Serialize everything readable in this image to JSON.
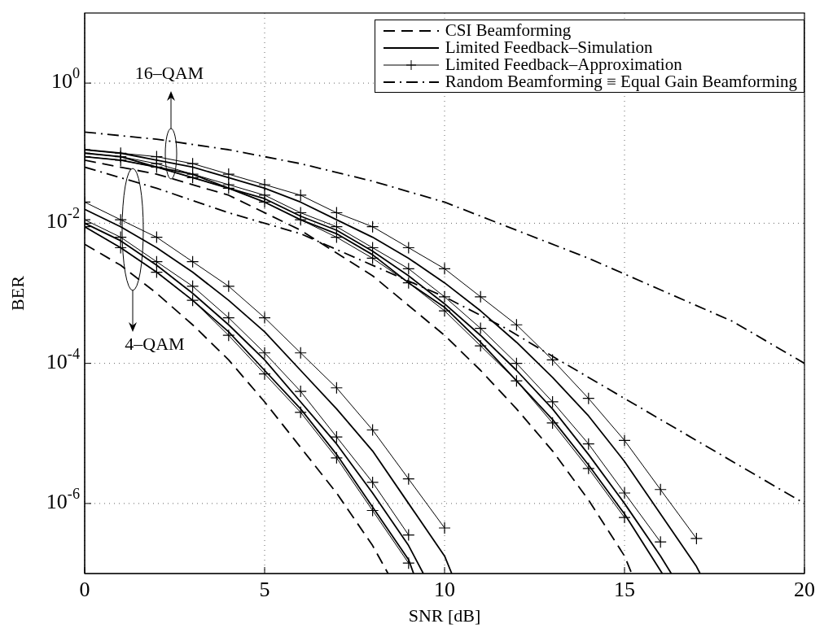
{
  "chart_data": {
    "type": "line",
    "xlabel": "SNR [dB]",
    "ylabel": "BER",
    "log": "y",
    "grid": true,
    "legend": "top right",
    "xlim": [
      0,
      20
    ],
    "xticks": [
      0,
      5,
      10,
      15,
      20
    ],
    "ylim": [
      1e-07,
      10
    ],
    "yticks": [
      {
        "value": 1e-06,
        "label": "10$^{-6}$"
      },
      {
        "value": 0.0001,
        "label": "10$^{-4}$"
      },
      {
        "value": 0.01,
        "label": "10$^{-2}$"
      },
      {
        "value": 1,
        "label": "10$^{0}$"
      }
    ],
    "annotations": [
      "16–QAM",
      "4–QAM"
    ],
    "series": [
      {
        "name": "CSI Beamforming",
        "color": "#000000",
        "line_style": "dashed",
        "marker": "none",
        "x": [
          0,
          1,
          2,
          3,
          4,
          5,
          6,
          7,
          8,
          8.43
        ],
        "values": [
          0.00501,
          0.00251,
          0.001,
          0.000355,
          0.000112,
          2.82e-05,
          6.31e-06,
          1.41e-06,
          2.51e-07,
          1e-07
        ]
      },
      {
        "name": "Limited Feedback–Simulation",
        "color": "#000000",
        "line_style": "solid",
        "marker": "none",
        "x": [
          0,
          1,
          2,
          3,
          4,
          5,
          6,
          7,
          8,
          9,
          10,
          10.2
        ],
        "values": [
          0.0158,
          0.00891,
          0.00447,
          0.002,
          0.000794,
          0.000282,
          7.94e-05,
          2.24e-05,
          5.62e-06,
          1e-06,
          1.78e-07,
          1e-07
        ]
      },
      {
        "name": "Limited Feedback–Approximation",
        "color": "#000000",
        "line_style": "solid",
        "marker": "cross",
        "x": [
          0,
          1,
          2,
          3,
          4,
          5,
          6,
          7,
          8,
          9,
          10
        ],
        "values": [
          0.02,
          0.0112,
          0.00631,
          0.00282,
          0.00126,
          0.000447,
          0.000141,
          4.47e-05,
          1.12e-05,
          2.24e-06,
          4.47e-07
        ]
      },
      {
        "name": "Random Beamforming ≡ Equal Gain Beamforming",
        "color": "#000000",
        "line_style": "dashdot",
        "marker": "none",
        "x": [
          0,
          2,
          4,
          6,
          8,
          10,
          12,
          14,
          16,
          18,
          20
        ],
        "values": [
          0.2,
          0.158,
          0.112,
          0.0708,
          0.0398,
          0.02,
          0.00794,
          0.00316,
          0.00112,
          0.000398,
          0.0001
        ]
      },
      {
        "color": "#000000",
        "line_style": "dashdot",
        "marker": "none",
        "x": [
          0,
          2,
          4,
          6,
          8,
          10,
          11.7,
          13,
          16,
          20
        ],
        "values": [
          0.0631,
          0.0316,
          0.0141,
          0.00708,
          0.00251,
          0.000891,
          0.000316,
          0.000126,
          1.58e-05,
          1e-06
        ]
      },
      {
        "color": "#000000",
        "line_style": "solid",
        "marker": "none",
        "x": [
          0,
          1,
          2,
          3,
          4,
          5,
          6,
          7,
          8,
          9,
          9.41
        ],
        "values": [
          0.01,
          0.00562,
          0.00251,
          0.001,
          0.000355,
          0.000112,
          2.82e-05,
          7.08e-06,
          1.41e-06,
          2.51e-07,
          1e-07
        ]
      },
      {
        "color": "#000000",
        "line_style": "solid",
        "marker": "none",
        "x": [
          0,
          1,
          2,
          3,
          4,
          5,
          6,
          7,
          8,
          9,
          9.14
        ],
        "values": [
          0.00891,
          0.00447,
          0.002,
          0.000794,
          0.000282,
          7.94e-05,
          2.24e-05,
          5.01e-06,
          8.91e-07,
          1.58e-07,
          1e-07
        ]
      },
      {
        "color": "#000000",
        "line_style": "solid",
        "marker": "cross",
        "x": [
          0,
          1,
          2,
          3,
          4,
          5,
          6,
          7,
          8,
          9
        ],
        "values": [
          0.0112,
          0.00631,
          0.00282,
          0.00126,
          0.000447,
          0.000141,
          3.98e-05,
          8.91e-06,
          2e-06,
          3.55e-07
        ]
      },
      {
        "color": "#000000",
        "line_style": "solid",
        "marker": "cross",
        "x": [
          0,
          1,
          2,
          3,
          4,
          5,
          6,
          7,
          8,
          9
        ],
        "values": [
          0.00891,
          0.00447,
          0.002,
          0.000794,
          0.000251,
          7.08e-05,
          2e-05,
          4.47e-06,
          7.94e-07,
          1.41e-07
        ]
      },
      {
        "color": "#000000",
        "line_style": "dashed",
        "marker": "none",
        "x": [
          0,
          2,
          4,
          6,
          8,
          10,
          11,
          12,
          13,
          14,
          15,
          15.2
        ],
        "values": [
          0.0794,
          0.0501,
          0.0251,
          0.00794,
          0.00178,
          0.000251,
          7.94e-05,
          2.24e-05,
          5.62e-06,
          1.12e-06,
          1.78e-07,
          1e-07
        ]
      },
      {
        "color": "#000000",
        "line_style": "solid",
        "marker": "cross",
        "x": [
          0,
          1,
          2,
          3,
          4,
          5,
          6,
          7,
          8,
          9,
          10,
          11,
          12,
          13,
          14,
          15
        ],
        "values": [
          0.0891,
          0.0794,
          0.0631,
          0.0447,
          0.0316,
          0.02,
          0.0112,
          0.00631,
          0.00316,
          0.00141,
          0.000562,
          0.000178,
          5.62e-05,
          1.41e-05,
          3.16e-06,
          6.31e-07
        ]
      },
      {
        "color": "#000000",
        "line_style": "solid",
        "marker": "none",
        "x": [
          0,
          1,
          2,
          3,
          4,
          5,
          6,
          7,
          8,
          9,
          10,
          11,
          12,
          13,
          14,
          15,
          16,
          17,
          17.1
        ],
        "values": [
          0.112,
          0.1,
          0.0794,
          0.0631,
          0.0447,
          0.0316,
          0.02,
          0.0112,
          0.00631,
          0.00316,
          0.00141,
          0.000562,
          0.0002,
          6.31e-05,
          1.78e-05,
          3.98e-06,
          7.08e-07,
          1.26e-07,
          1e-07
        ]
      },
      {
        "color": "#000000",
        "line_style": "solid",
        "marker": "none",
        "x": [
          0,
          1,
          2,
          3,
          4,
          5,
          6,
          7,
          8,
          9,
          10,
          11,
          12,
          13,
          14,
          15,
          16,
          16.3
        ],
        "values": [
          0.1,
          0.0891,
          0.0631,
          0.0501,
          0.0316,
          0.0224,
          0.0126,
          0.00794,
          0.00398,
          0.00178,
          0.000708,
          0.000251,
          7.94e-05,
          2.24e-05,
          5.01e-06,
          1e-06,
          1.78e-07,
          1e-07
        ]
      },
      {
        "color": "#000000",
        "line_style": "solid",
        "marker": "none",
        "x": [
          0,
          1,
          2,
          3,
          4,
          5,
          6,
          7,
          8,
          9,
          10,
          11,
          12,
          13,
          14,
          15,
          16.05
        ],
        "values": [
          0.0891,
          0.0794,
          0.0631,
          0.0447,
          0.0316,
          0.02,
          0.0112,
          0.00708,
          0.00355,
          0.00141,
          0.000631,
          0.0002,
          5.62e-05,
          1.58e-05,
          3.55e-06,
          7.08e-07,
          1e-07
        ]
      },
      {
        "color": "#000000",
        "line_style": "solid",
        "marker": "cross",
        "x": [
          0,
          1,
          2,
          3,
          4,
          5,
          6,
          7,
          8,
          9,
          10,
          11,
          12,
          13,
          14,
          15,
          16,
          17
        ],
        "values": [
          0.112,
          0.1,
          0.0891,
          0.0708,
          0.0501,
          0.0355,
          0.0251,
          0.0141,
          0.00891,
          0.00447,
          0.00224,
          0.000891,
          0.000355,
          0.000112,
          3.16e-05,
          7.94e-06,
          1.58e-06,
          3.16e-07
        ]
      },
      {
        "color": "#000000",
        "line_style": "solid",
        "marker": "cross",
        "x": [
          0,
          1,
          2,
          3,
          4,
          5,
          6,
          7,
          8,
          9,
          10,
          11,
          12,
          13,
          14,
          15,
          16
        ],
        "values": [
          0.1,
          0.0891,
          0.0708,
          0.0501,
          0.0355,
          0.0251,
          0.0141,
          0.00891,
          0.00447,
          0.00224,
          0.000891,
          0.000316,
          0.0001,
          2.82e-05,
          7.08e-06,
          1.41e-06,
          2.82e-07
        ]
      }
    ]
  }
}
